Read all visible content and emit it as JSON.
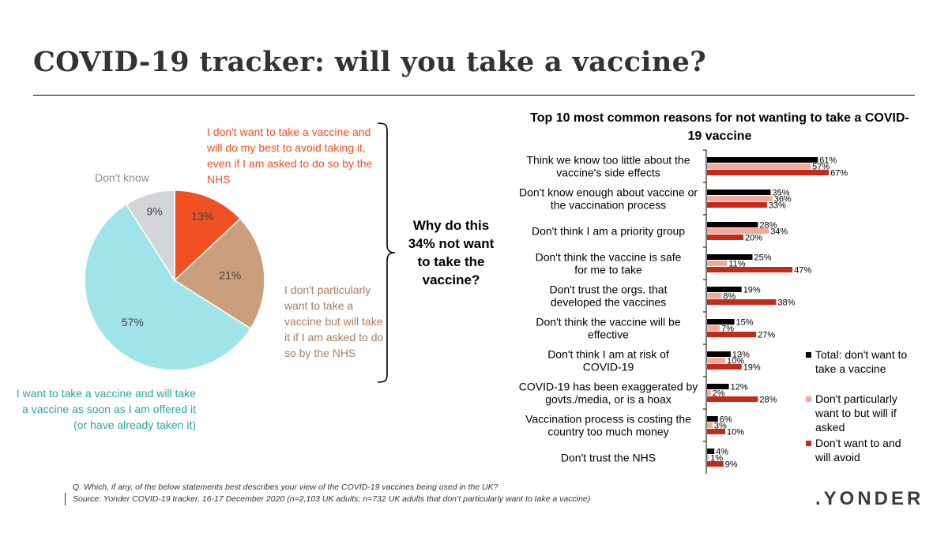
{
  "title": "COVID-19 tracker: will you take a vaccine?",
  "question": "Why do this 34% not want to take the vaccine?",
  "pie": {
    "slices": [
      {
        "label": "I don't want to take a vaccine and will do my best to avoid taking it, even if I am asked to do so by the NHS",
        "value": 13,
        "value_label": "13%",
        "color": "#f15023"
      },
      {
        "label": "I don't particularly want to take a vaccine but will take it if I am asked to do so by the NHS",
        "value": 21,
        "value_label": "21%",
        "color": "#c99f7e"
      },
      {
        "label": "I want to take a vaccine and will take a vaccine as soon as I am offered it (or have already taken it)",
        "value": 57,
        "value_label": "57%",
        "color": "#a0e4ea"
      },
      {
        "label": "Don't know",
        "value": 9,
        "value_label": "9%",
        "color": "#d3d6d8"
      }
    ]
  },
  "chart_data": {
    "type": "bar",
    "orientation": "horizontal",
    "title": "Top 10 most common reasons for not wanting to take a COVID-19 vaccine",
    "categories": [
      "Think we know too little about the vaccine's side effects",
      "Don't know enough about vaccine or the vaccination process",
      "Don't think I am a priority group",
      "Don't think the vaccine is safe for me to take",
      "Don't trust the orgs. that developed the vaccines",
      "Don't think the vaccine will be effective",
      "Don't think I am at risk of COVID-19",
      "COVID-19 has been exaggerated by govts./media, or is a hoax",
      "Vaccination process is costing the country too much money",
      "Don't trust the NHS"
    ],
    "series": [
      {
        "name": "Total: don't want to take a vaccine",
        "color": "#000000",
        "values": [
          61,
          35,
          28,
          25,
          19,
          15,
          13,
          12,
          6,
          4
        ]
      },
      {
        "name": "Don't particularly want to but will if asked",
        "color": "#f4a99a",
        "values": [
          57,
          36,
          34,
          11,
          8,
          7,
          10,
          2,
          3,
          1
        ]
      },
      {
        "name": "Don't want to and will avoid",
        "color": "#c52a18",
        "values": [
          67,
          33,
          20,
          47,
          38,
          27,
          19,
          28,
          10,
          9
        ]
      }
    ],
    "value_suffix": "%",
    "legend_position": "right"
  },
  "footnote": {
    "line1": "Q. Which, if any, of the below statements best describes your view of the COVID-19 vaccines being used in the UK?",
    "line2": "Source: Yonder COVID-19 tracker, 16-17 December 2020 (n=2,103 UK adults; n=732 UK adults that don’t particularly want to take a vaccine)"
  },
  "logo": ".YONDER"
}
